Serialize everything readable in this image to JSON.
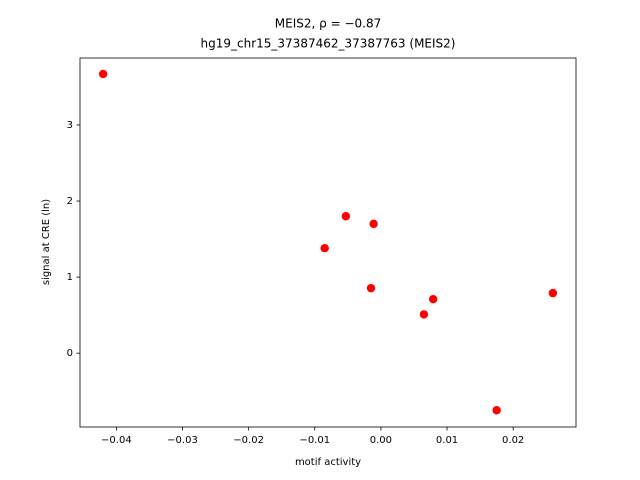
{
  "chart_data": {
    "type": "scatter",
    "title": "MEIS2, ρ = −0.87",
    "subtitle": "hg19_chr15_37387462_37387763 (MEIS2)",
    "x_label": "motif activity",
    "y_label": "signal at CRE (ln)",
    "color": "#ff0000",
    "x": [
      -0.042,
      -0.0053,
      -0.0011,
      -0.0085,
      -0.0015,
      0.0079,
      0.0065,
      0.026,
      0.0175
    ],
    "values": [
      3.67,
      1.8,
      1.7,
      1.38,
      0.855,
      0.71,
      0.51,
      0.79,
      -0.75
    ],
    "xlim": [
      -0.0455,
      0.0295
    ],
    "ylim": [
      -0.97,
      3.88
    ],
    "xticks": [
      {
        "value": -0.04,
        "label": "−0.04"
      },
      {
        "value": -0.03,
        "label": "−0.03"
      },
      {
        "value": -0.02,
        "label": "−0.02"
      },
      {
        "value": -0.01,
        "label": "−0.01"
      },
      {
        "value": 0,
        "label": "0.00"
      },
      {
        "value": 0.01,
        "label": "0.01"
      },
      {
        "value": 0.02,
        "label": "0.02"
      }
    ],
    "yticks": [
      0,
      1,
      2,
      3
    ],
    "grid": false
  }
}
